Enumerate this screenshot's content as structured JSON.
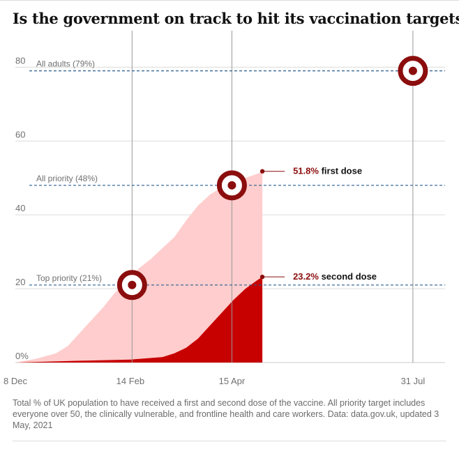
{
  "colors": {
    "first_dose_fill": "#ffcdcd",
    "second_dose_fill": "#c70000",
    "target_ring": "#8b0d0d",
    "target_line": "#2a5d8f",
    "gridline": "#dcdcdc",
    "axis_text": "#707070",
    "date_line": "#999999"
  },
  "chart_data": {
    "type": "area",
    "title": "Is the government on track to hit its vaccination targets?",
    "xlabel": "",
    "ylabel": "",
    "ylim": [
      0,
      88
    ],
    "grid": true,
    "y_ticks": [
      {
        "value": 0,
        "label": "0%"
      },
      {
        "value": 20,
        "label": "20"
      },
      {
        "value": 40,
        "label": "40"
      },
      {
        "value": 60,
        "label": "60"
      },
      {
        "value": 80,
        "label": "80"
      }
    ],
    "x_ticks": [
      {
        "date": "2020-12-08",
        "label": "8 Dec"
      },
      {
        "date": "2021-02-14",
        "label": "14 Feb"
      },
      {
        "date": "2021-04-15",
        "label": "15 Apr"
      },
      {
        "date": "2021-07-31",
        "label": "31 Jul"
      }
    ],
    "series": [
      {
        "name": "first dose",
        "x": [
          "2020-12-08",
          "2020-12-20",
          "2021-01-01",
          "2021-01-08",
          "2021-01-15",
          "2021-01-22",
          "2021-01-29",
          "2021-02-05",
          "2021-02-12",
          "2021-02-19",
          "2021-02-26",
          "2021-03-05",
          "2021-03-12",
          "2021-03-19",
          "2021-03-26",
          "2021-04-02",
          "2021-04-09",
          "2021-04-16",
          "2021-04-23",
          "2021-04-30",
          "2021-05-03"
        ],
        "values": [
          0.0,
          1.0,
          2.5,
          4.5,
          8.0,
          11.5,
          15.0,
          19.0,
          22.0,
          25.5,
          28.0,
          31.0,
          34.0,
          38.5,
          42.5,
          45.5,
          47.5,
          48.8,
          50.0,
          51.1,
          51.8
        ]
      },
      {
        "name": "second dose",
        "x": [
          "2020-12-08",
          "2021-01-15",
          "2021-02-14",
          "2021-03-05",
          "2021-03-12",
          "2021-03-19",
          "2021-03-26",
          "2021-04-02",
          "2021-04-09",
          "2021-04-16",
          "2021-04-23",
          "2021-04-30",
          "2021-05-03"
        ],
        "values": [
          0.0,
          0.5,
          0.8,
          1.5,
          2.5,
          4.0,
          6.5,
          10.0,
          13.5,
          17.0,
          20.0,
          22.3,
          23.2
        ]
      }
    ],
    "targets": [
      {
        "label": "Top priority (21%)",
        "value": 21,
        "date": "2021-02-15"
      },
      {
        "label": "All priority (48%)",
        "value": 48,
        "date": "2021-04-15"
      },
      {
        "label": "All adults (79%)",
        "value": 79,
        "date": "2021-07-31"
      }
    ],
    "annotations": [
      {
        "pct": "51.8%",
        "text": "first dose",
        "date": "2021-05-03",
        "value": 51.8
      },
      {
        "pct": "23.2%",
        "text": "second dose",
        "date": "2021-05-03",
        "value": 23.2
      }
    ]
  },
  "caption": "Total % of UK population to have received a first and second dose of the vaccine. All priority target includes everyone over 50, the clinically vulnerable, and frontline health and care workers. Data: data.gov.uk, updated 3 May, 2021"
}
